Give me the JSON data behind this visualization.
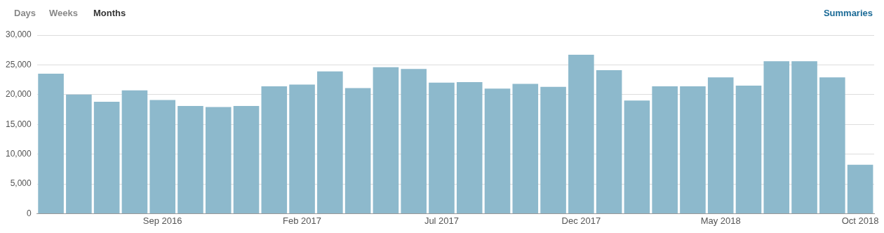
{
  "chart_data": {
    "type": "bar",
    "categories": [
      null,
      null,
      null,
      null,
      "Sep 2016",
      null,
      null,
      null,
      null,
      "Feb 2017",
      null,
      null,
      null,
      null,
      "Jul 2017",
      null,
      null,
      null,
      null,
      "Dec 2017",
      null,
      null,
      null,
      null,
      "May 2018",
      null,
      null,
      null,
      null,
      "Oct 2018"
    ],
    "values": [
      23500,
      20000,
      18800,
      20700,
      19100,
      18100,
      17900,
      18100,
      21400,
      21700,
      23900,
      21100,
      24600,
      24300,
      22000,
      22100,
      21000,
      21800,
      21300,
      26700,
      24100,
      19000,
      21400,
      21400,
      22900,
      21500,
      25600,
      25600,
      22900,
      8200
    ],
    "color": "#8db9cc",
    "ylim": [
      0,
      30000
    ],
    "yticks": [
      {
        "value": 0,
        "label": "0"
      },
      {
        "value": 5000,
        "label": "5,000"
      },
      {
        "value": 10000,
        "label": "10,000"
      },
      {
        "value": 15000,
        "label": "15,000"
      },
      {
        "value": 20000,
        "label": "20,000"
      },
      {
        "value": 25000,
        "label": "25,000"
      },
      {
        "value": 30000,
        "label": "30,000"
      }
    ],
    "grid": "y",
    "annotations": [
      "Days",
      "Weeks",
      "Months",
      "Summaries"
    ]
  }
}
